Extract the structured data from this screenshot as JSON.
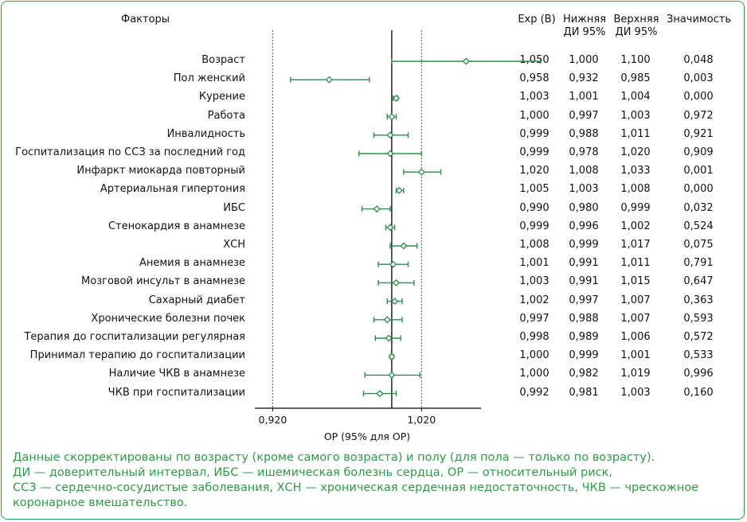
{
  "headers": {
    "factors": "Факторы",
    "exp_b": "Exp (B)",
    "lower": [
      "Нижняя",
      "ДИ 95%"
    ],
    "upper": [
      "Верхняя",
      "ДИ 95%"
    ],
    "significance": "Значимость"
  },
  "chart_data": {
    "type": "forest",
    "xlabel": "ОР (95% для ОР)",
    "xlim": [
      0.908,
      1.06
    ],
    "reference_line": 1.0,
    "dashed_lines": [
      0.92,
      1.02
    ],
    "tick_labels": [
      "0,920",
      "1,020"
    ],
    "tick_values": [
      0.92,
      1.02
    ],
    "colors": {
      "marker": "#2e8b4c",
      "ci": "#2e8b4c",
      "axis": "#000000"
    },
    "rows": [
      {
        "factor": "Возраст",
        "est": 1.05,
        "lo": 1.0,
        "hi": 1.1,
        "est_s": "1,050",
        "lo_s": "1,000",
        "hi_s": "1,100",
        "p_s": "0,048"
      },
      {
        "factor": "Пол женский",
        "est": 0.958,
        "lo": 0.932,
        "hi": 0.985,
        "est_s": "0,958",
        "lo_s": "0,932",
        "hi_s": "0,985",
        "p_s": "0,003"
      },
      {
        "factor": "Курение",
        "est": 1.003,
        "lo": 1.001,
        "hi": 1.004,
        "est_s": "1,003",
        "lo_s": "1,001",
        "hi_s": "1,004",
        "p_s": "0,000"
      },
      {
        "factor": "Работа",
        "est": 1.0,
        "lo": 0.997,
        "hi": 1.003,
        "est_s": "1,000",
        "lo_s": "0,997",
        "hi_s": "1,003",
        "p_s": "0,972"
      },
      {
        "factor": "Инвалидность",
        "est": 0.999,
        "lo": 0.988,
        "hi": 1.011,
        "est_s": "0,999",
        "lo_s": "0,988",
        "hi_s": "1,011",
        "p_s": "0,921"
      },
      {
        "factor": "Госпитализация по ССЗ за последний год",
        "est": 0.999,
        "lo": 0.978,
        "hi": 1.02,
        "est_s": "0,999",
        "lo_s": "0,978",
        "hi_s": "1,020",
        "p_s": "0,909"
      },
      {
        "factor": "Инфаркт миокарда повторный",
        "est": 1.02,
        "lo": 1.008,
        "hi": 1.033,
        "est_s": "1,020",
        "lo_s": "1,008",
        "hi_s": "1,033",
        "p_s": "0,001"
      },
      {
        "factor": "Артериальная гипертония",
        "est": 1.005,
        "lo": 1.003,
        "hi": 1.008,
        "est_s": "1,005",
        "lo_s": "1,003",
        "hi_s": "1,008",
        "p_s": "0,000"
      },
      {
        "factor": "ИБС",
        "est": 0.99,
        "lo": 0.98,
        "hi": 0.999,
        "est_s": "0,990",
        "lo_s": "0,980",
        "hi_s": "0,999",
        "p_s": "0,032"
      },
      {
        "factor": "Стенокардия в анамнезе",
        "est": 0.999,
        "lo": 0.996,
        "hi": 1.002,
        "est_s": "0,999",
        "lo_s": "0,996",
        "hi_s": "1,002",
        "p_s": "0,524"
      },
      {
        "factor": "ХСН",
        "est": 1.008,
        "lo": 0.999,
        "hi": 1.017,
        "est_s": "1,008",
        "lo_s": "0,999",
        "hi_s": "1,017",
        "p_s": "0,075"
      },
      {
        "factor": "Анемия в анамнезе",
        "est": 1.001,
        "lo": 0.991,
        "hi": 1.011,
        "est_s": "1,001",
        "lo_s": "0,991",
        "hi_s": "1,011",
        "p_s": "0,791"
      },
      {
        "factor": "Мозговой инсульт в анамнезе",
        "est": 1.003,
        "lo": 0.991,
        "hi": 1.015,
        "est_s": "1,003",
        "lo_s": "0,991",
        "hi_s": "1,015",
        "p_s": "0,647"
      },
      {
        "factor": "Сахарный диабет",
        "est": 1.002,
        "lo": 0.997,
        "hi": 1.007,
        "est_s": "1,002",
        "lo_s": "0,997",
        "hi_s": "1,007",
        "p_s": "0,363"
      },
      {
        "factor": "Хронические болезни почек",
        "est": 0.997,
        "lo": 0.988,
        "hi": 1.007,
        "est_s": "0,997",
        "lo_s": "0,988",
        "hi_s": "1,007",
        "p_s": "0,593"
      },
      {
        "factor": "Терапия до госпитализации регулярная",
        "est": 0.998,
        "lo": 0.989,
        "hi": 1.006,
        "est_s": "0,998",
        "lo_s": "0,989",
        "hi_s": "1,006",
        "p_s": "0,572"
      },
      {
        "factor": "Принимал терапию до госпитализации",
        "est": 1.0,
        "lo": 0.999,
        "hi": 1.001,
        "est_s": "1,000",
        "lo_s": "0,999",
        "hi_s": "1,001",
        "p_s": "0,533"
      },
      {
        "factor": "Наличие ЧКВ в анамнезе",
        "est": 1.0,
        "lo": 0.982,
        "hi": 1.019,
        "est_s": "1,000",
        "lo_s": "0,982",
        "hi_s": "1,019",
        "p_s": "0,996"
      },
      {
        "factor": "ЧКВ при госпитализации",
        "est": 0.992,
        "lo": 0.981,
        "hi": 1.003,
        "est_s": "0,992",
        "lo_s": "0,981",
        "hi_s": "1,003",
        "p_s": "0,160"
      }
    ]
  },
  "footnote": [
    "Данные скорректированы по возрасту (кроме самого возраста) и полу (для пола — только по возрасту).",
    "ДИ — доверительный интервал, ИБС — ишемическая болезнь сердца, ОР — относительный риск,",
    "ССЗ — сердечно-сосудистые заболевания, ХСН — хроническая сердечная недостаточность, ЧКВ — чрескожное",
    "коронарное вмешательство."
  ]
}
